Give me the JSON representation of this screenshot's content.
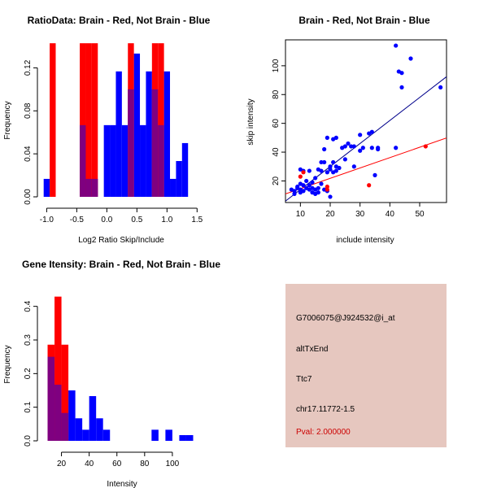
{
  "chart_data": [
    {
      "id": "ratio",
      "type": "histogram",
      "title": "RatioData: Brain - Red, Not Brain - Blue",
      "xlabel": "Log2 Ratio Skip/Include",
      "ylabel": "Frequency",
      "xlim": [
        -1.1,
        1.55
      ],
      "ylim": [
        0,
        0.14
      ],
      "xticks": [
        -1.0,
        -0.5,
        0.0,
        0.5,
        1.0,
        1.5
      ],
      "xtick_labels": [
        "-1.0",
        "-0.5",
        "0.0",
        "0.5",
        "1.0",
        "1.5"
      ],
      "yticks": [
        0.0,
        0.04,
        0.08,
        0.12
      ],
      "ytick_labels": [
        "0.00",
        "0.04",
        "0.08",
        "0.12"
      ],
      "series": [
        {
          "name": "Not Brain",
          "color": "#0000ff",
          "bins": [
            [
              -1.05,
              -0.95,
              0.0167
            ],
            [
              -0.45,
              -0.35,
              0.0667
            ],
            [
              -0.35,
              -0.25,
              0.0167
            ],
            [
              -0.25,
              -0.15,
              0.0167
            ],
            [
              -0.05,
              0.05,
              0.0667
            ],
            [
              0.05,
              0.15,
              0.0667
            ],
            [
              0.15,
              0.25,
              0.1167
            ],
            [
              0.25,
              0.35,
              0.0667
            ],
            [
              0.35,
              0.45,
              0.1
            ],
            [
              0.45,
              0.55,
              0.1333
            ],
            [
              0.55,
              0.65,
              0.0667
            ],
            [
              0.65,
              0.75,
              0.1167
            ],
            [
              0.75,
              0.85,
              0.1
            ],
            [
              0.85,
              0.95,
              0.0667
            ],
            [
              0.95,
              1.05,
              0.1167
            ],
            [
              1.05,
              1.15,
              0.0167
            ],
            [
              1.15,
              1.25,
              0.0333
            ],
            [
              1.25,
              1.35,
              0.05
            ]
          ]
        },
        {
          "name": "Brain",
          "color": "#ff0000",
          "bins": [
            [
              -0.95,
              -0.85,
              0.1429
            ],
            [
              -0.45,
              -0.35,
              0.1429
            ],
            [
              -0.35,
              -0.25,
              0.1429
            ],
            [
              -0.25,
              -0.15,
              0.1429
            ],
            [
              0.35,
              0.45,
              0.1429
            ],
            [
              0.75,
              0.85,
              0.1429
            ],
            [
              0.85,
              0.95,
              0.1429
            ]
          ]
        }
      ]
    },
    {
      "id": "scatter",
      "type": "scatter",
      "title": "Brain - Red, Not Brain - Blue",
      "xlabel": "include intensity",
      "ylabel": "skip intensity",
      "xlim": [
        5,
        59
      ],
      "ylim": [
        5,
        118
      ],
      "xticks": [
        10,
        20,
        30,
        40,
        50
      ],
      "xtick_labels": [
        "10",
        "20",
        "30",
        "40",
        "50"
      ],
      "yticks": [
        20,
        40,
        60,
        80,
        100
      ],
      "ytick_labels": [
        "20",
        "40",
        "60",
        "80",
        "100"
      ],
      "series": [
        {
          "name": "Not Brain",
          "color": "#0000ff",
          "points": [
            [
              7,
              14
            ],
            [
              8,
              13
            ],
            [
              8,
              11
            ],
            [
              9,
              15
            ],
            [
              9,
              16
            ],
            [
              10,
              12
            ],
            [
              10,
              18
            ],
            [
              10,
              14
            ],
            [
              10,
              28
            ],
            [
              11,
              17
            ],
            [
              11,
              13
            ],
            [
              11,
              27
            ],
            [
              12,
              20
            ],
            [
              12,
              15
            ],
            [
              13,
              17
            ],
            [
              13,
              14
            ],
            [
              13,
              27
            ],
            [
              14,
              12
            ],
            [
              14,
              19
            ],
            [
              14,
              15
            ],
            [
              15,
              11
            ],
            [
              15,
              22
            ],
            [
              15,
              14
            ],
            [
              16,
              15
            ],
            [
              16,
              28
            ],
            [
              16,
              12
            ],
            [
              17,
              27
            ],
            [
              17,
              33
            ],
            [
              17,
              18
            ],
            [
              18,
              42
            ],
            [
              18,
              14
            ],
            [
              18,
              33
            ],
            [
              19,
              50
            ],
            [
              19,
              26
            ],
            [
              19,
              13
            ],
            [
              20,
              28
            ],
            [
              20,
              9
            ],
            [
              20,
              30
            ],
            [
              21,
              26
            ],
            [
              21,
              49
            ],
            [
              21,
              33
            ],
            [
              22,
              27
            ],
            [
              22,
              30
            ],
            [
              22,
              50
            ],
            [
              23,
              29
            ],
            [
              24,
              43
            ],
            [
              25,
              35
            ],
            [
              25,
              44
            ],
            [
              26,
              46
            ],
            [
              27,
              44
            ],
            [
              28,
              30
            ],
            [
              28,
              44
            ],
            [
              30,
              52
            ],
            [
              30,
              41
            ],
            [
              31,
              43
            ],
            [
              33,
              53
            ],
            [
              34,
              54
            ],
            [
              34,
              43
            ],
            [
              35,
              24
            ],
            [
              36,
              43
            ],
            [
              36,
              42
            ],
            [
              42,
              114
            ],
            [
              42,
              43
            ],
            [
              43,
              96
            ],
            [
              44,
              85
            ],
            [
              44,
              95
            ],
            [
              47,
              105
            ],
            [
              57,
              85
            ]
          ]
        },
        {
          "name": "Brain",
          "color": "#ff0000",
          "points": [
            [
              10,
              23
            ],
            [
              11,
              26
            ],
            [
              19,
              16
            ],
            [
              19,
              14
            ],
            [
              33,
              17
            ],
            [
              52,
              44
            ]
          ]
        }
      ],
      "fits": [
        {
          "name": "Not Brain fit",
          "color": "#00008b",
          "intercept": -2.0,
          "slope": 1.6
        },
        {
          "name": "Brain fit",
          "color": "#ff0000",
          "intercept": 7.4,
          "slope": 0.72
        }
      ]
    },
    {
      "id": "intensity",
      "type": "histogram",
      "title": "Gene Itensity: Brain - Red, Not Brain - Blue",
      "xlabel": "Intensity",
      "ylabel": "Frequency",
      "xlim": [
        5,
        120
      ],
      "ylim": [
        0,
        0.45
      ],
      "xticks": [
        20,
        40,
        60,
        80,
        100
      ],
      "xtick_labels": [
        "20",
        "40",
        "60",
        "80",
        "100"
      ],
      "yticks": [
        0.0,
        0.1,
        0.2,
        0.3,
        0.4
      ],
      "ytick_labels": [
        "0.0",
        "0.1",
        "0.2",
        "0.3",
        "0.4"
      ],
      "series": [
        {
          "name": "Not Brain",
          "color": "#0000ff",
          "bins": [
            [
              10,
              15,
              0.25
            ],
            [
              15,
              20,
              0.167
            ],
            [
              20,
              25,
              0.083
            ],
            [
              25,
              30,
              0.15
            ],
            [
              30,
              35,
              0.067
            ],
            [
              35,
              40,
              0.033
            ],
            [
              40,
              45,
              0.133
            ],
            [
              45,
              50,
              0.067
            ],
            [
              50,
              55,
              0.033
            ],
            [
              55,
              60,
              0.0
            ],
            [
              60,
              65,
              0.0
            ],
            [
              65,
              70,
              0.0
            ],
            [
              70,
              75,
              0.0
            ],
            [
              75,
              80,
              0.0
            ],
            [
              80,
              85,
              0.0
            ],
            [
              85,
              90,
              0.033
            ],
            [
              90,
              95,
              0.0
            ],
            [
              95,
              100,
              0.033
            ],
            [
              100,
              105,
              0.0
            ],
            [
              105,
              110,
              0.017
            ],
            [
              110,
              115,
              0.017
            ]
          ]
        },
        {
          "name": "Brain",
          "color": "#ff0000",
          "bins": [
            [
              10,
              15,
              0.286
            ],
            [
              15,
              20,
              0.429
            ],
            [
              20,
              25,
              0.286
            ]
          ]
        }
      ]
    }
  ],
  "info": {
    "probe_id": "G7006075@J924532@i_at",
    "event_type": "altTxEnd",
    "gene": "Ttc7",
    "location": "chr17.11772-1.5",
    "pval": "Pval: 2.000000",
    "pval_color": "#cc0000",
    "panel_color": "#e6c7bf"
  }
}
